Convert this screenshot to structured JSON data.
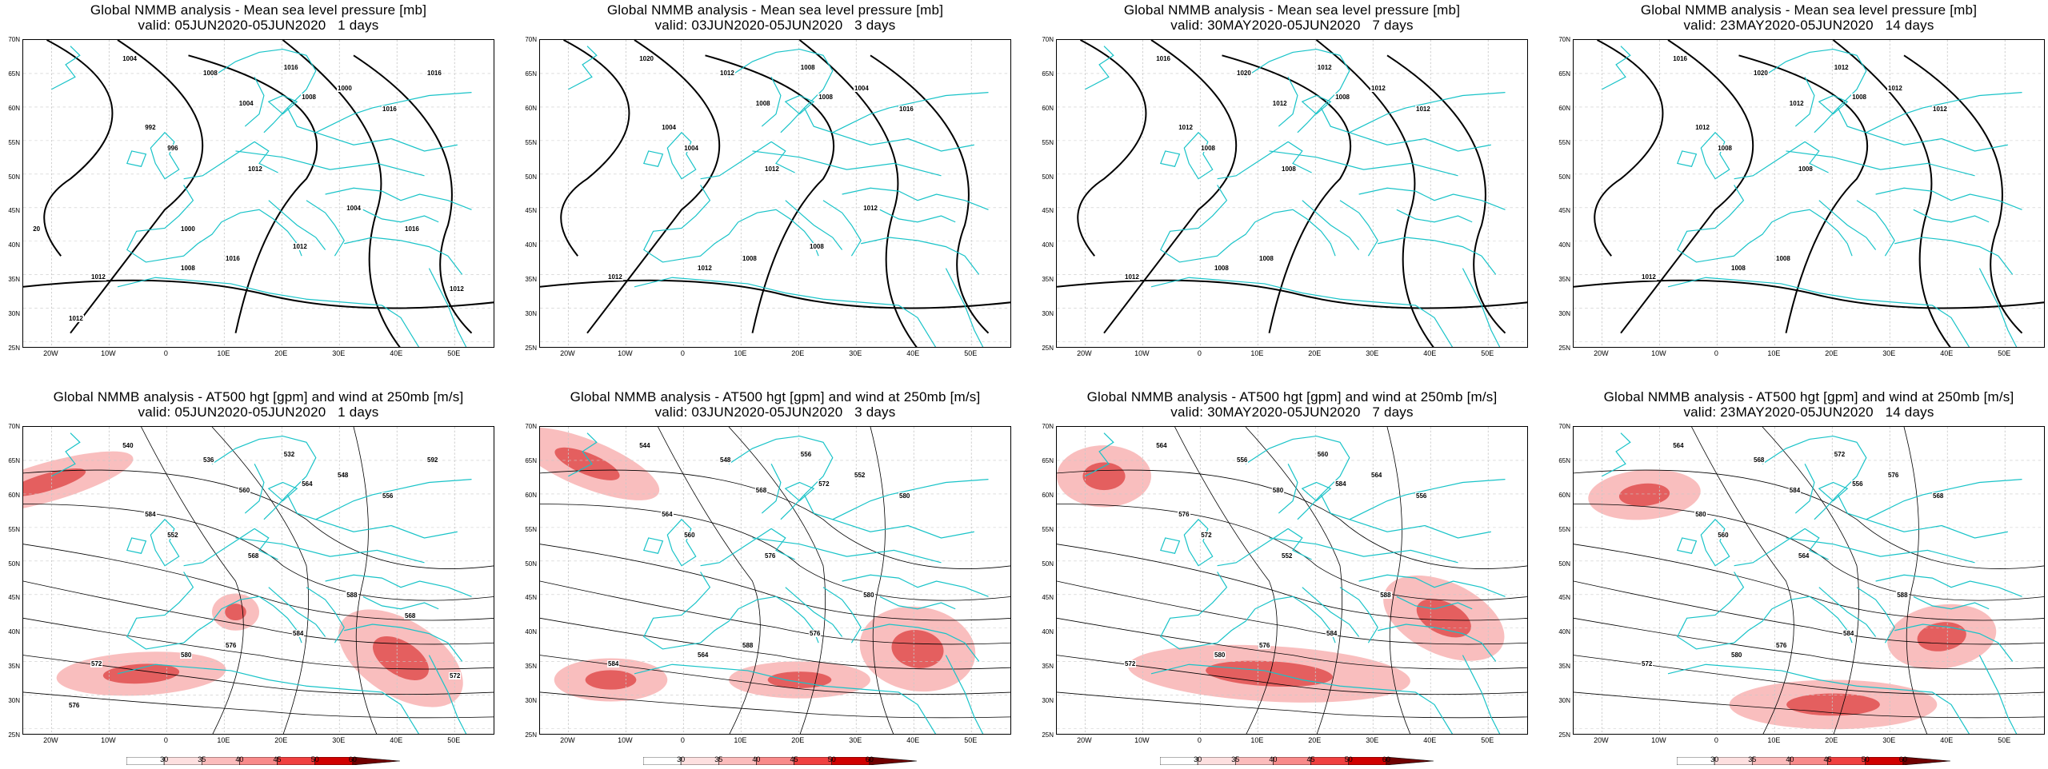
{
  "rows": [
    {
      "type": "mslp",
      "panels": [
        {
          "title": "Global NMMB analysis - Mean sea level pressure [mb]",
          "valid": "valid: 05JUN2020-05JUN2020   1 days",
          "labels": [
            "1004",
            "1008",
            "1016",
            "1000",
            "996",
            "992",
            "1004",
            "1008",
            "1012",
            "1016",
            "1012",
            "1016",
            "1008",
            "1012",
            "1004",
            "1016",
            "1016",
            "1012",
            "1012",
            "1000",
            "20"
          ]
        },
        {
          "title": "Global NMMB analysis - Mean sea level pressure [mb]",
          "valid": "valid: 03JUN2020-05JUN2020   3 days",
          "labels": [
            "1020",
            "1012",
            "1008",
            "1004",
            "1004",
            "1004",
            "1008",
            "1008",
            "1012",
            "1016",
            "1012",
            "1008",
            "1012",
            "1008",
            "1012"
          ]
        },
        {
          "title": "Global NMMB analysis - Mean sea level pressure [mb]",
          "valid": "valid: 30MAY2020-05JUN2020   7 days",
          "labels": [
            "1016",
            "1020",
            "1012",
            "1012",
            "1008",
            "1012",
            "1012",
            "1008",
            "1008",
            "1012",
            "1012",
            "1008",
            "1008"
          ]
        },
        {
          "title": "Global NMMB analysis - Mean sea level pressure [mb]",
          "valid": "valid: 23MAY2020-05JUN2020   14 days",
          "labels": [
            "1016",
            "1020",
            "1012",
            "1012",
            "1008",
            "1012",
            "1012",
            "1008",
            "1008",
            "1012",
            "1012",
            "1008",
            "1008"
          ]
        }
      ]
    },
    {
      "type": "z500",
      "panels": [
        {
          "title": "Global NMMB analysis - AT500 hgt [gpm] and wind at 250mb [m/s]",
          "valid": "valid: 05JUN2020-05JUN2020   1 days",
          "labels": [
            "540",
            "536",
            "532",
            "548",
            "552",
            "584",
            "560",
            "564",
            "568",
            "556",
            "572",
            "576",
            "580",
            "584",
            "588",
            "592",
            "568",
            "572",
            "576"
          ]
        },
        {
          "title": "Global NMMB analysis - AT500 hgt [gpm] and wind at 250mb [m/s]",
          "valid": "valid: 03JUN2020-05JUN2020   3 days",
          "labels": [
            "544",
            "548",
            "556",
            "552",
            "560",
            "564",
            "568",
            "572",
            "576",
            "580",
            "584",
            "588",
            "564",
            "576",
            "580"
          ]
        },
        {
          "title": "Global NMMB analysis - AT500 hgt [gpm] and wind at 250mb [m/s]",
          "valid": "valid: 30MAY2020-05JUN2020   7 days",
          "labels": [
            "564",
            "556",
            "560",
            "564",
            "572",
            "576",
            "580",
            "584",
            "552",
            "556",
            "572",
            "576",
            "580",
            "584",
            "588"
          ]
        },
        {
          "title": "Global NMMB analysis - AT500 hgt [gpm] and wind at 250mb [m/s]",
          "valid": "valid: 23MAY2020-05JUN2020   14 days",
          "labels": [
            "564",
            "568",
            "572",
            "576",
            "560",
            "580",
            "584",
            "556",
            "564",
            "568",
            "572",
            "576",
            "580",
            "584",
            "588"
          ]
        }
      ]
    }
  ],
  "axes": {
    "lat_labels": [
      "70N",
      "65N",
      "60N",
      "55N",
      "50N",
      "45N",
      "40N",
      "35N",
      "30N",
      "25N"
    ],
    "lon_labels": [
      "20W",
      "10W",
      "0",
      "10E",
      "20E",
      "30E",
      "40E",
      "50E"
    ]
  },
  "colorbar": {
    "ticks": [
      "30",
      "35",
      "40",
      "45",
      "50",
      "60"
    ],
    "colors": [
      "#ffffff",
      "#fde0e0",
      "#fbbcbc",
      "#f88a8a",
      "#f04040",
      "#d00000",
      "#700000"
    ]
  },
  "colors": {
    "coast": "#19c3c8",
    "contour": "#000000",
    "grid": "#c8c8c8",
    "jet": "#ee4444"
  }
}
